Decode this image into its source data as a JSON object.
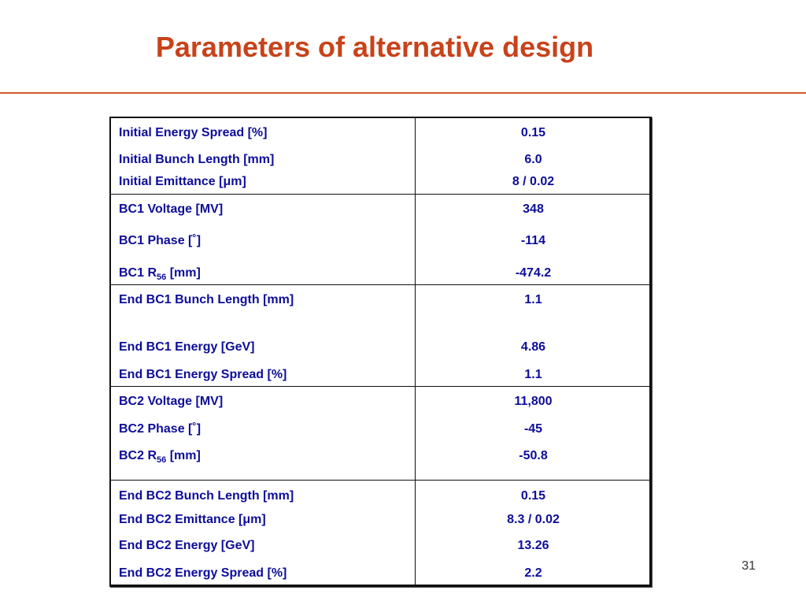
{
  "slide": {
    "title": "Parameters of alternative design",
    "page_number": "31"
  },
  "table": {
    "rows": [
      {
        "label": "Initial Energy Spread [%]",
        "value": "0.15"
      },
      {
        "label": "Initial Bunch Length [mm]",
        "value": "6.0"
      },
      {
        "label": "Initial Emittance [μm]",
        "value": "8 / 0.02"
      },
      {
        "label": "BC1 Voltage [MV]",
        "value": "348"
      },
      {
        "label": "BC1 Phase [˚]",
        "value": "-114"
      },
      {
        "label_main": "BC1 R",
        "label_sub": "56",
        "label_tail": " [mm]",
        "value": "-474.2"
      },
      {
        "label": "End BC1 Bunch Length [mm]",
        "value": "1.1"
      },
      {
        "label": "End BC1 Energy [GeV]",
        "value": "4.86"
      },
      {
        "label": "End BC1 Energy Spread [%]",
        "value": "1.1"
      },
      {
        "label": "BC2 Voltage [MV]",
        "value": "11,800"
      },
      {
        "label": "BC2 Phase [˚]",
        "value": "-45"
      },
      {
        "label_main": "BC2 R",
        "label_sub": "56",
        "label_tail": " [mm]",
        "value": "-50.8"
      },
      {
        "label": "End BC2 Bunch Length [mm]",
        "value": "0.15"
      },
      {
        "label": "End BC2 Emittance [μm]",
        "value": "8.3 / 0.02"
      },
      {
        "label": "End BC2 Energy [GeV]",
        "value": "13.26"
      },
      {
        "label": "End BC2 Energy Spread [%]",
        "value": "2.2"
      }
    ]
  },
  "colors": {
    "title": "#c8421a",
    "rule": "#cc5a2c",
    "table_text": "#0d0d9a",
    "border": "#111111"
  }
}
